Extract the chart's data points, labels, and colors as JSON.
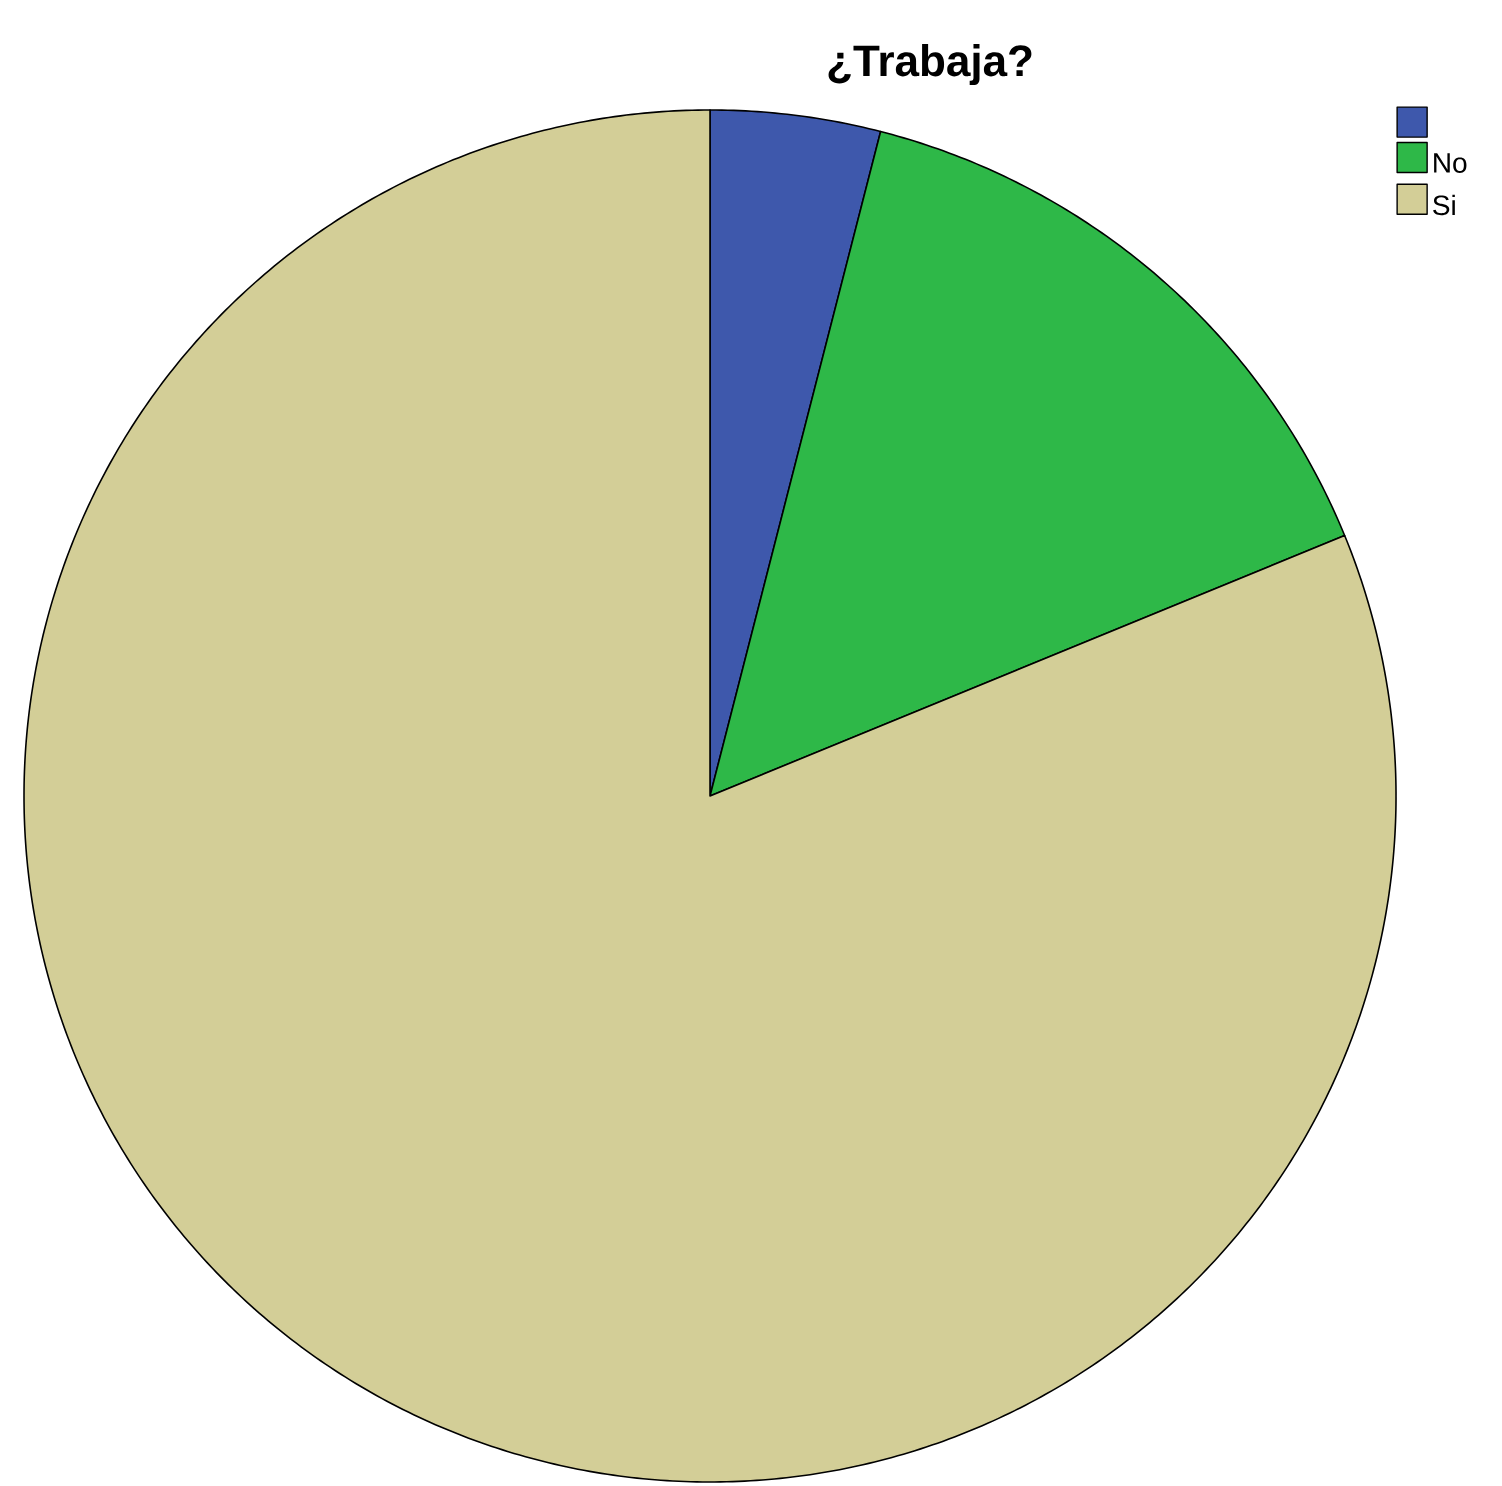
{
  "chart_data": {
    "type": "pie",
    "title": "¿Trabaja?",
    "categories": [
      null,
      "No",
      "Si"
    ],
    "values": [
      4.0,
      14.8,
      81.2
    ],
    "colors": [
      "#3e58ac",
      "#2eb848",
      "#d3ce97"
    ],
    "legend": "top right"
  }
}
